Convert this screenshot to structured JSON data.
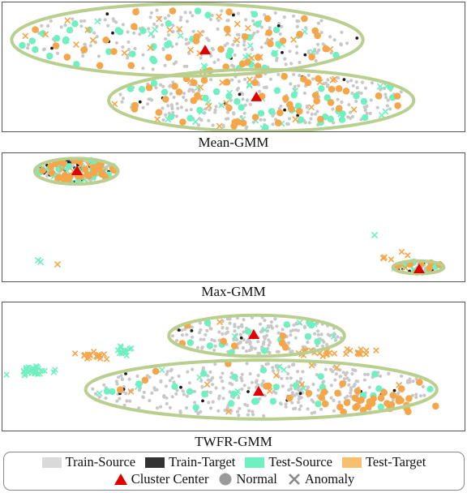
{
  "chart_data": [
    {
      "type": "scatter",
      "caption": "Mean-GMM",
      "clusters": [
        {
          "center": [
            0.4,
            0.29
          ],
          "rx": 0.38,
          "ry": 0.28
        },
        {
          "center": [
            0.56,
            0.76
          ],
          "rx": 0.33,
          "ry": 0.24
        }
      ]
    },
    {
      "type": "scatter",
      "caption": "Max-GMM",
      "clusters": [
        {
          "center": [
            0.16,
            0.14
          ],
          "rx": 0.09,
          "ry": 0.1
        },
        {
          "center": [
            0.9,
            0.89
          ],
          "rx": 0.055,
          "ry": 0.05
        }
      ]
    },
    {
      "type": "scatter",
      "caption": "TWFR-GMM",
      "clusters": [
        {
          "center": [
            0.55,
            0.26
          ],
          "rx": 0.19,
          "ry": 0.16
        },
        {
          "center": [
            0.56,
            0.68
          ],
          "rx": 0.38,
          "ry": 0.23
        }
      ]
    }
  ],
  "legend": {
    "train_source": "Train-Source",
    "train_target": "Train-Target",
    "test_source": "Test-Source",
    "test_target": "Test-Target",
    "cluster_center": "Cluster Center",
    "normal": "Normal",
    "anomaly": "Anomaly"
  },
  "colors": {
    "train_source": "#c8c8c8",
    "train_target": "#1a1a1a",
    "test_source": "#6ff0c0",
    "test_target": "#f5a64a",
    "cluster_center": "#e00000",
    "ellipse": "#b9cf8f",
    "normal": "#9a9a9a",
    "anomaly": "#8a8a8a"
  }
}
